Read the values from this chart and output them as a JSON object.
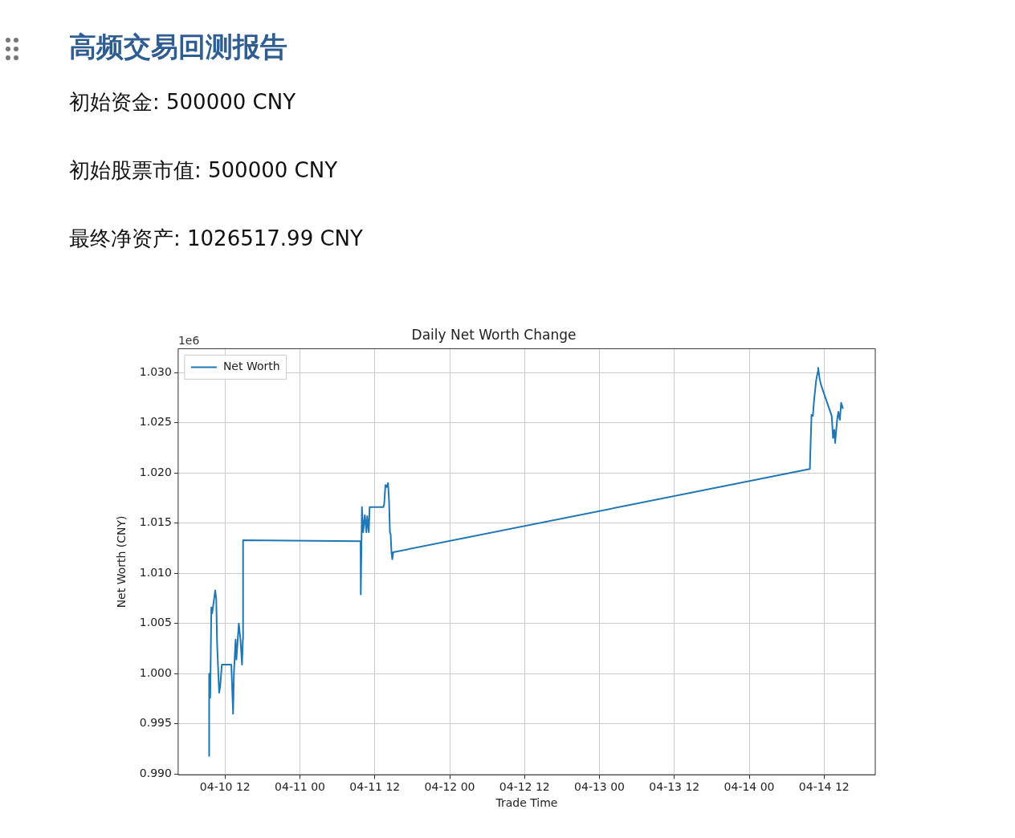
{
  "chart_data": {
    "type": "line",
    "title": "Daily Net Worth Change",
    "xlabel": "Trade Time",
    "ylabel": "Net Worth (CNY)",
    "annotations": [
      "高频交易回测报告",
      "初始资金: 500000 CNY",
      "初始股票市值: 500000 CNY",
      "最终净资产: 1026517.99 CNY",
      "1e6"
    ],
    "series": [
      {
        "name": "Net Worth",
        "color": "#1f77b4",
        "x": [
          "--04-10T09:27",
          "--04-10T09:25",
          "--04-10T09:29",
          "--04-10T09:37",
          "--04-10T09:48",
          "--04-10T09:56",
          "--04-10T10:25",
          "--04-10T10:35",
          "--04-10T10:43",
          "--04-10T11:03",
          "--04-10T11:13",
          "--04-10T11:29",
          "--04-10T13:00",
          "--04-10T13:10",
          "--04-10T13:17",
          "--04-10T13:25",
          "--04-10T13:41",
          "--04-10T13:49",
          "--04-10T14:12",
          "--04-10T14:28",
          "--04-10T14:43",
          "--04-10T14:51",
          "--04-10T14:53",
          "--04-11T09:43",
          "--04-11T09:45",
          "--04-11T09:56",
          "--04-11T10:08",
          "--04-11T10:24",
          "--04-11T10:39",
          "--04-11T10:47",
          "--04-11T11:02",
          "--04-11T11:10",
          "--04-11T13:22",
          "--04-11T13:30",
          "--04-11T13:42",
          "--04-11T13:53",
          "--04-11T14:07",
          "--04-11T14:17",
          "--04-11T14:25",
          "--04-11T14:32",
          "--04-11T14:40",
          "--04-11T14:48",
          "--04-11T14:56",
          "--04-14T09:43",
          "--04-14T09:51",
          "--04-14T09:59",
          "--04-14T10:12",
          "--04-14T10:22",
          "--04-14T10:43",
          "--04-14T10:59",
          "--04-14T11:03",
          "--04-14T11:17",
          "--04-14T11:30",
          "--04-14T13:13",
          "--04-14T13:26",
          "--04-14T13:38",
          "--04-14T13:46",
          "--04-14T14:05",
          "--04-14T14:17",
          "--04-14T14:31",
          "--04-14T14:44",
          "--04-14T15:02"
        ],
        "values": [
          1.0,
          0.9918,
          0.9976,
          0.9976,
          1.0066,
          1.006,
          1.0083,
          1.0075,
          1.0031,
          0.9981,
          0.9987,
          1.0009,
          1.0009,
          0.9981,
          0.996,
          1.0,
          1.0034,
          1.0014,
          1.005,
          1.0034,
          1.0009,
          1.0034,
          1.0133,
          1.0132,
          1.0079,
          1.0166,
          1.0141,
          1.0158,
          1.0141,
          1.0157,
          1.0141,
          1.0166,
          1.0166,
          1.0169,
          1.0188,
          1.0186,
          1.019,
          1.0172,
          1.0141,
          1.0139,
          1.0121,
          1.0114,
          1.0121,
          1.0204,
          1.0232,
          1.0258,
          1.0257,
          1.0271,
          1.0292,
          1.0301,
          1.0305,
          1.0294,
          1.0288,
          1.0257,
          1.0235,
          1.0243,
          1.023,
          1.0253,
          1.0261,
          1.0253,
          1.027,
          1.0264
        ]
      }
    ],
    "xlim": [
      "--04-10T04:29",
      "--04-14T20:12"
    ],
    "xticks": [
      {
        "value": "--04-10T12:00",
        "label": "04-10 12"
      },
      {
        "value": "--04-11T00:00",
        "label": "04-11 00"
      },
      {
        "value": "--04-11T12:00",
        "label": "04-11 12"
      },
      {
        "value": "--04-12T00:00",
        "label": "04-12 00"
      },
      {
        "value": "--04-12T12:00",
        "label": "04-12 12"
      },
      {
        "value": "--04-13T00:00",
        "label": "04-13 00"
      },
      {
        "value": "--04-13T12:00",
        "label": "04-13 12"
      },
      {
        "value": "--04-14T00:00",
        "label": "04-14 00"
      },
      {
        "value": "--04-14T12:00",
        "label": "04-14 12"
      }
    ],
    "ylim": [
      0.9899,
      1.0324
    ],
    "yticks": [
      {
        "value": 0.99,
        "label": "0.990"
      },
      {
        "value": 0.995,
        "label": "0.995"
      },
      {
        "value": 1.0,
        "label": "1.000"
      },
      {
        "value": 1.005,
        "label": "1.005"
      },
      {
        "value": 1.01,
        "label": "1.010"
      },
      {
        "value": 1.015,
        "label": "1.015"
      },
      {
        "value": 1.02,
        "label": "1.020"
      },
      {
        "value": 1.025,
        "label": "1.025"
      },
      {
        "value": 1.03,
        "label": "1.030"
      }
    ],
    "grid": true,
    "legend": "top left",
    "marker": "none",
    "line_style": "solid"
  }
}
